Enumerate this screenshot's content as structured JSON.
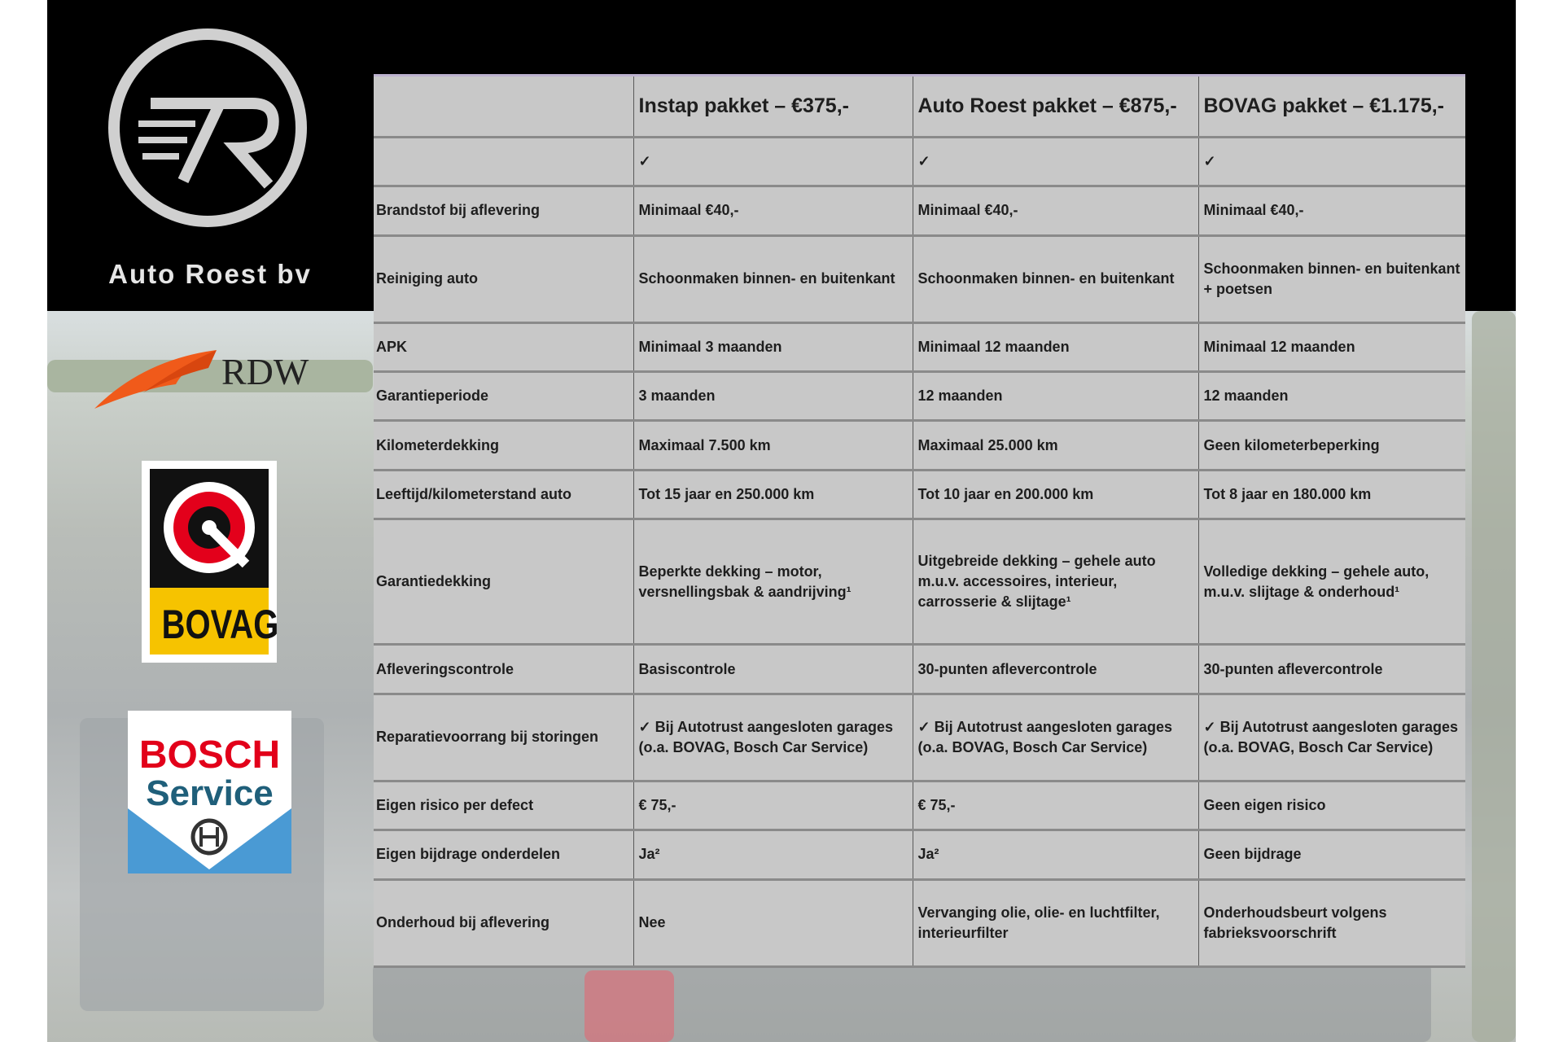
{
  "brand": {
    "name": "Auto Roest bv",
    "logo_text": "AR"
  },
  "logos": {
    "rdw": "RDW",
    "bovag": "BOVAG",
    "bosch_line1": "BOSCH",
    "bosch_line2": "Service"
  },
  "colors": {
    "table_bg": "#c8c8c8",
    "rdw_orange": "#f05a1a",
    "bovag_yellow": "#f6c300",
    "bosch_red": "#e2001a",
    "bosch_blue": "#4a9ad4"
  },
  "table": {
    "headers": [
      "",
      "Instap pakket – €375,-",
      "Auto Roest pakket – €875,-",
      "BOVAG pakket – €1.175,-"
    ],
    "rows": [
      [
        "",
        "✓",
        "✓",
        "✓"
      ],
      [
        "Brandstof bij aflevering",
        "Minimaal €40,-",
        "Minimaal €40,-",
        "Minimaal €40,-"
      ],
      [
        "Reiniging auto",
        "Schoonmaken binnen- en buitenkant",
        "Schoonmaken binnen- en buitenkant",
        "Schoonmaken binnen- en buitenkant + poetsen"
      ],
      [
        "APK",
        "Minimaal 3 maanden",
        "Minimaal 12 maanden",
        "Minimaal 12 maanden"
      ],
      [
        "Garantieperiode",
        "3 maanden",
        "12 maanden",
        "12 maanden"
      ],
      [
        "Kilometerdekking",
        "Maximaal 7.500 km",
        "Maximaal 25.000 km",
        "Geen kilometerbeperking"
      ],
      [
        "Leeftijd/kilometerstand auto",
        "Tot 15 jaar en 250.000 km",
        "Tot 10 jaar en 200.000 km",
        "Tot 8 jaar en 180.000 km"
      ],
      [
        "Garantiedekking",
        "Beperkte dekking – motor, versnellingsbak & aandrijving¹",
        "Uitgebreide dekking – gehele auto m.u.v. accessoires, interieur, carrosserie & slijtage¹",
        "Volledige dekking – gehele auto, m.u.v. slijtage & onderhoud¹"
      ],
      [
        "Afleveringscontrole",
        "Basiscontrole",
        "30-punten aflevercontrole",
        "30-punten aflevercontrole"
      ],
      [
        "Reparatievoorrang bij storingen",
        "✓ Bij Autotrust aangesloten garages (o.a. BOVAG, Bosch Car Service)",
        "✓ Bij Autotrust aangesloten garages (o.a. BOVAG, Bosch Car Service)",
        "✓ Bij Autotrust aangesloten garages (o.a. BOVAG, Bosch Car Service)"
      ],
      [
        "Eigen risico per defect",
        "€ 75,-",
        "€ 75,-",
        "Geen eigen risico"
      ],
      [
        "Eigen bijdrage onderdelen",
        "Ja²",
        "Ja²",
        "Geen bijdrage"
      ],
      [
        "Onderhoud bij aflevering",
        "Nee",
        "Vervanging olie, olie- en luchtfilter, interieurfilter",
        "Onderhoudsbeurt volgens fabrieksvoorschrift"
      ]
    ]
  }
}
